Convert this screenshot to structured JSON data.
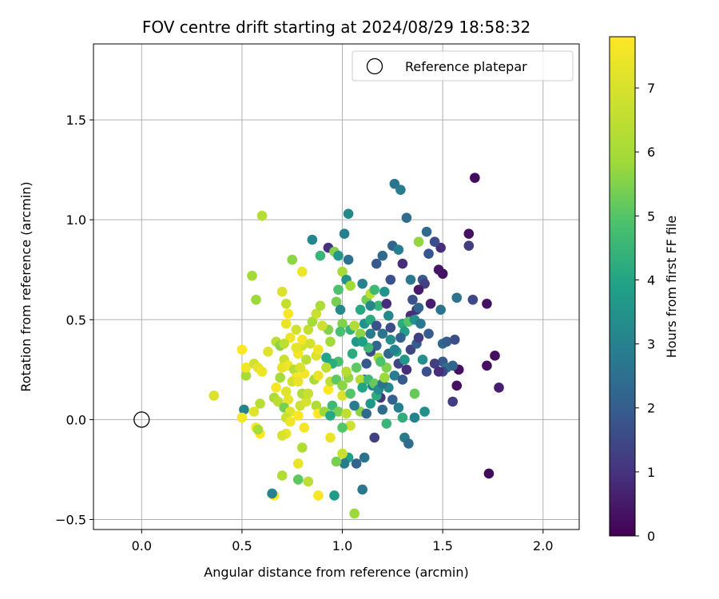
{
  "chart_data": {
    "type": "scatter",
    "title": "FOV centre drift starting at 2024/08/29 18:58:32",
    "xlabel": "Angular distance from reference (arcmin)",
    "ylabel": "Rotation from reference (arcmin)",
    "xlim": [
      -0.24,
      2.18
    ],
    "ylim": [
      -0.55,
      1.88
    ],
    "xticks": [
      0.0,
      0.5,
      1.0,
      1.5,
      2.0
    ],
    "xtick_labels": [
      "0.0",
      "0.5",
      "1.0",
      "1.5",
      "2.0"
    ],
    "yticks": [
      -0.5,
      0.0,
      0.5,
      1.0,
      1.5
    ],
    "ytick_labels": [
      "−0.5",
      "0.0",
      "0.5",
      "1.0",
      "1.5"
    ],
    "grid": true,
    "legend": {
      "entries": [
        "Reference platepar"
      ],
      "placement": "top-right"
    },
    "reference_point": {
      "x": 0.0,
      "y": 0.0,
      "label": "Reference platepar"
    },
    "colorbar": {
      "label": "Hours from first FF file",
      "colormap": "viridis",
      "range": [
        0,
        7.8
      ],
      "ticks": [
        0,
        1,
        2,
        3,
        4,
        5,
        6,
        7
      ],
      "tick_labels": [
        "0",
        "1",
        "2",
        "3",
        "4",
        "5",
        "6",
        "7"
      ]
    },
    "points": [
      {
        "x": 1.66,
        "y": 1.21,
        "t": 0.2
      },
      {
        "x": 1.63,
        "y": 0.93,
        "t": 0.3
      },
      {
        "x": 1.63,
        "y": 0.87,
        "t": 1.2
      },
      {
        "x": 1.65,
        "y": 0.6,
        "t": 1.5
      },
      {
        "x": 1.72,
        "y": 0.58,
        "t": 0.3
      },
      {
        "x": 1.76,
        "y": 0.32,
        "t": 0.3
      },
      {
        "x": 1.72,
        "y": 0.27,
        "t": 0.3
      },
      {
        "x": 1.78,
        "y": 0.16,
        "t": 0.6
      },
      {
        "x": 1.73,
        "y": -0.27,
        "t": 0.2
      },
      {
        "x": 1.57,
        "y": 0.17,
        "t": 0.3
      },
      {
        "x": 1.58,
        "y": 0.25,
        "t": 0.3
      },
      {
        "x": 1.55,
        "y": 0.09,
        "t": 1.2
      },
      {
        "x": 1.5,
        "y": 0.73,
        "t": 0.3
      },
      {
        "x": 1.48,
        "y": 0.75,
        "t": 0.4
      },
      {
        "x": 1.49,
        "y": 0.86,
        "t": 0.9
      },
      {
        "x": 1.46,
        "y": 0.89,
        "t": 1.6
      },
      {
        "x": 1.42,
        "y": 0.94,
        "t": 2.4
      },
      {
        "x": 1.43,
        "y": 0.83,
        "t": 1.8
      },
      {
        "x": 1.4,
        "y": 0.7,
        "t": 1.9
      },
      {
        "x": 1.41,
        "y": 0.68,
        "t": 1.3
      },
      {
        "x": 1.38,
        "y": 0.65,
        "t": 0.5
      },
      {
        "x": 1.35,
        "y": 0.6,
        "t": 1.7
      },
      {
        "x": 1.37,
        "y": 0.55,
        "t": 1.1
      },
      {
        "x": 1.34,
        "y": 0.52,
        "t": 0.9
      },
      {
        "x": 1.3,
        "y": 0.48,
        "t": 4.2
      },
      {
        "x": 1.33,
        "y": 0.49,
        "t": 5.0
      },
      {
        "x": 1.31,
        "y": 0.44,
        "t": 3.8
      },
      {
        "x": 1.32,
        "y": 1.01,
        "t": 2.4
      },
      {
        "x": 1.26,
        "y": 1.18,
        "t": 2.6
      },
      {
        "x": 1.29,
        "y": 1.15,
        "t": 2.8
      },
      {
        "x": 1.38,
        "y": 0.89,
        "t": 5.7
      },
      {
        "x": 1.34,
        "y": 0.7,
        "t": 2.7
      },
      {
        "x": 1.3,
        "y": 0.78,
        "t": 0.9
      },
      {
        "x": 1.25,
        "y": 0.87,
        "t": 2.2
      },
      {
        "x": 1.28,
        "y": 0.85,
        "t": 2.9
      },
      {
        "x": 1.24,
        "y": 0.7,
        "t": 1.7
      },
      {
        "x": 1.2,
        "y": 0.82,
        "t": 2.3
      },
      {
        "x": 1.17,
        "y": 0.78,
        "t": 1.9
      },
      {
        "x": 1.21,
        "y": 0.64,
        "t": 3.5
      },
      {
        "x": 1.18,
        "y": 0.57,
        "t": 4.5
      },
      {
        "x": 1.23,
        "y": 0.52,
        "t": 3.2
      },
      {
        "x": 1.24,
        "y": 0.46,
        "t": 1.6
      },
      {
        "x": 1.2,
        "y": 0.43,
        "t": 2.6
      },
      {
        "x": 1.17,
        "y": 0.37,
        "t": 2.2
      },
      {
        "x": 1.14,
        "y": 0.34,
        "t": 1.6
      },
      {
        "x": 1.12,
        "y": 0.28,
        "t": 1.9
      },
      {
        "x": 1.11,
        "y": 0.2,
        "t": 2.5
      },
      {
        "x": 1.15,
        "y": 0.17,
        "t": 3.0
      },
      {
        "x": 1.19,
        "y": 0.11,
        "t": 1.1
      },
      {
        "x": 1.23,
        "y": 0.16,
        "t": 3.2
      },
      {
        "x": 1.26,
        "y": 0.22,
        "t": 2.8
      },
      {
        "x": 1.28,
        "y": 0.28,
        "t": 1.4
      },
      {
        "x": 1.32,
        "y": 0.25,
        "t": 0.9
      },
      {
        "x": 1.27,
        "y": 0.34,
        "t": 3.8
      },
      {
        "x": 1.23,
        "y": 0.33,
        "t": 2.3
      },
      {
        "x": 1.28,
        "y": 0.06,
        "t": 2.9
      },
      {
        "x": 1.3,
        "y": 0.01,
        "t": 4.3
      },
      {
        "x": 1.36,
        "y": 0.01,
        "t": 3.0
      },
      {
        "x": 1.36,
        "y": 0.13,
        "t": 5.2
      },
      {
        "x": 1.41,
        "y": 0.04,
        "t": 3.4
      },
      {
        "x": 1.31,
        "y": -0.09,
        "t": 2.8
      },
      {
        "x": 1.33,
        "y": -0.12,
        "t": 2.4
      },
      {
        "x": 1.16,
        "y": -0.09,
        "t": 1.3
      },
      {
        "x": 1.1,
        "y": -0.35,
        "t": 2.7
      },
      {
        "x": 1.11,
        "y": -0.19,
        "t": 2.6
      },
      {
        "x": 1.07,
        "y": -0.22,
        "t": 2.2
      },
      {
        "x": 1.03,
        "y": -0.19,
        "t": 3.8
      },
      {
        "x": 1.01,
        "y": -0.22,
        "t": 2.8
      },
      {
        "x": 0.96,
        "y": -0.38,
        "t": 3.7
      },
      {
        "x": 0.97,
        "y": -0.21,
        "t": 5.4
      },
      {
        "x": 1.06,
        "y": -0.47,
        "t": 5.8
      },
      {
        "x": 1.0,
        "y": -0.17,
        "t": 6.7
      },
      {
        "x": 0.94,
        "y": -0.09,
        "t": 7.4
      },
      {
        "x": 0.88,
        "y": -0.38,
        "t": 7.7
      },
      {
        "x": 0.83,
        "y": -0.31,
        "t": 6.5
      },
      {
        "x": 0.8,
        "y": -0.14,
        "t": 6.2
      },
      {
        "x": 0.78,
        "y": -0.3,
        "t": 5.1
      },
      {
        "x": 0.78,
        "y": -0.22,
        "t": 7.4
      },
      {
        "x": 0.7,
        "y": -0.28,
        "t": 6.2
      },
      {
        "x": 0.66,
        "y": -0.38,
        "t": 7.8
      },
      {
        "x": 0.65,
        "y": -0.37,
        "t": 3.0
      },
      {
        "x": 0.72,
        "y": -0.07,
        "t": 7.4
      },
      {
        "x": 0.7,
        "y": -0.08,
        "t": 7.0
      },
      {
        "x": 0.59,
        "y": -0.07,
        "t": 7.8
      },
      {
        "x": 0.57,
        "y": -0.04,
        "t": 7.6
      },
      {
        "x": 0.58,
        "y": -0.05,
        "t": 6.0
      },
      {
        "x": 0.56,
        "y": 0.04,
        "t": 7.2
      },
      {
        "x": 0.51,
        "y": 0.05,
        "t": 3.0
      },
      {
        "x": 0.5,
        "y": 0.01,
        "t": 7.6
      },
      {
        "x": 0.36,
        "y": 0.12,
        "t": 7.1
      },
      {
        "x": 0.52,
        "y": 0.22,
        "t": 6.0
      },
      {
        "x": 0.52,
        "y": 0.26,
        "t": 7.6
      },
      {
        "x": 0.5,
        "y": 0.35,
        "t": 7.8
      },
      {
        "x": 0.56,
        "y": 0.28,
        "t": 6.9
      },
      {
        "x": 0.58,
        "y": 0.26,
        "t": 7.3
      },
      {
        "x": 0.6,
        "y": 0.24,
        "t": 7.5
      },
      {
        "x": 0.59,
        "y": 0.08,
        "t": 6.3
      },
      {
        "x": 0.55,
        "y": 0.72,
        "t": 5.9
      },
      {
        "x": 0.57,
        "y": 0.6,
        "t": 5.8
      },
      {
        "x": 0.6,
        "y": 1.02,
        "t": 6.3
      },
      {
        "x": 0.63,
        "y": 0.34,
        "t": 7.2
      },
      {
        "x": 0.67,
        "y": 0.39,
        "t": 6.4
      },
      {
        "x": 0.69,
        "y": 0.37,
        "t": 5.6
      },
      {
        "x": 0.71,
        "y": 0.3,
        "t": 6.7
      },
      {
        "x": 0.7,
        "y": 0.64,
        "t": 7.1
      },
      {
        "x": 0.72,
        "y": 0.58,
        "t": 6.6
      },
      {
        "x": 0.75,
        "y": 0.8,
        "t": 5.6
      },
      {
        "x": 0.8,
        "y": 0.74,
        "t": 7.5
      },
      {
        "x": 0.72,
        "y": 0.48,
        "t": 7.4
      },
      {
        "x": 0.73,
        "y": 0.53,
        "t": 7.7
      },
      {
        "x": 0.77,
        "y": 0.45,
        "t": 6.9
      },
      {
        "x": 0.74,
        "y": 0.41,
        "t": 7.5
      },
      {
        "x": 0.71,
        "y": 0.38,
        "t": 6.5
      },
      {
        "x": 0.7,
        "y": 0.26,
        "t": 7.3
      },
      {
        "x": 0.73,
        "y": 0.27,
        "t": 7.5
      },
      {
        "x": 0.76,
        "y": 0.25,
        "t": 6.3
      },
      {
        "x": 0.77,
        "y": 0.21,
        "t": 7.7
      },
      {
        "x": 0.75,
        "y": 0.19,
        "t": 6.9
      },
      {
        "x": 0.69,
        "y": 0.21,
        "t": 6.0
      },
      {
        "x": 0.66,
        "y": 0.11,
        "t": 6.1
      },
      {
        "x": 0.68,
        "y": 0.09,
        "t": 6.4
      },
      {
        "x": 0.67,
        "y": 0.16,
        "t": 7.7
      },
      {
        "x": 0.72,
        "y": 0.14,
        "t": 7.2
      },
      {
        "x": 0.73,
        "y": 0.1,
        "t": 7.3
      },
      {
        "x": 0.71,
        "y": 0.06,
        "t": 5.4
      },
      {
        "x": 0.74,
        "y": 0.04,
        "t": 7.2
      },
      {
        "x": 0.72,
        "y": 0.01,
        "t": 6.7
      },
      {
        "x": 0.74,
        "y": -0.01,
        "t": 7.5
      },
      {
        "x": 0.78,
        "y": 0.02,
        "t": 7.8
      },
      {
        "x": 0.81,
        "y": -0.04,
        "t": 7.6
      },
      {
        "x": 0.79,
        "y": 0.07,
        "t": 6.8
      },
      {
        "x": 0.82,
        "y": 0.09,
        "t": 7.0
      },
      {
        "x": 0.8,
        "y": 0.13,
        "t": 6.2
      },
      {
        "x": 0.83,
        "y": 0.13,
        "t": 6.7
      },
      {
        "x": 0.78,
        "y": 0.19,
        "t": 7.4
      },
      {
        "x": 0.81,
        "y": 0.23,
        "t": 7.6
      },
      {
        "x": 0.79,
        "y": 0.26,
        "t": 7.1
      },
      {
        "x": 0.82,
        "y": 0.3,
        "t": 6.4
      },
      {
        "x": 0.78,
        "y": 0.33,
        "t": 7.6
      },
      {
        "x": 0.8,
        "y": 0.37,
        "t": 6.9
      },
      {
        "x": 0.77,
        "y": 0.36,
        "t": 7.3
      },
      {
        "x": 0.8,
        "y": 0.4,
        "t": 7.6
      },
      {
        "x": 0.83,
        "y": 0.45,
        "t": 6.6
      },
      {
        "x": 0.85,
        "y": 0.49,
        "t": 6.0
      },
      {
        "x": 0.87,
        "y": 0.53,
        "t": 6.7
      },
      {
        "x": 0.84,
        "y": 0.38,
        "t": 6.9
      },
      {
        "x": 0.87,
        "y": 0.32,
        "t": 7.1
      },
      {
        "x": 0.88,
        "y": 0.35,
        "t": 7.5
      },
      {
        "x": 0.86,
        "y": 0.2,
        "t": 6.1
      },
      {
        "x": 0.88,
        "y": 0.22,
        "t": 7.4
      },
      {
        "x": 0.87,
        "y": 0.07,
        "t": 6.2
      },
      {
        "x": 0.88,
        "y": 0.03,
        "t": 7.8
      },
      {
        "x": 0.91,
        "y": 0.04,
        "t": 5.8
      },
      {
        "x": 0.93,
        "y": 0.15,
        "t": 7.8
      },
      {
        "x": 0.94,
        "y": 0.19,
        "t": 6.5
      },
      {
        "x": 0.95,
        "y": 0.07,
        "t": 4.6
      },
      {
        "x": 0.98,
        "y": 0.04,
        "t": 5.4
      },
      {
        "x": 1.0,
        "y": 0.12,
        "t": 7.1
      },
      {
        "x": 1.02,
        "y": 0.03,
        "t": 6.5
      },
      {
        "x": 1.04,
        "y": -0.03,
        "t": 6.8
      },
      {
        "x": 1.0,
        "y": -0.04,
        "t": 5.0
      },
      {
        "x": 0.94,
        "y": 0.02,
        "t": 4.1
      },
      {
        "x": 0.97,
        "y": 0.2,
        "t": 5.1
      },
      {
        "x": 1.0,
        "y": 0.17,
        "t": 5.6
      },
      {
        "x": 0.98,
        "y": 0.29,
        "t": 4.8
      },
      {
        "x": 0.95,
        "y": 0.28,
        "t": 4.2
      },
      {
        "x": 0.92,
        "y": 0.26,
        "t": 6.5
      },
      {
        "x": 0.92,
        "y": 0.31,
        "t": 4.0
      },
      {
        "x": 0.94,
        "y": 0.39,
        "t": 5.9
      },
      {
        "x": 0.93,
        "y": 0.45,
        "t": 5.5
      },
      {
        "x": 0.9,
        "y": 0.47,
        "t": 6.8
      },
      {
        "x": 0.89,
        "y": 0.57,
        "t": 6.1
      },
      {
        "x": 0.89,
        "y": 0.82,
        "t": 4.5
      },
      {
        "x": 0.85,
        "y": 0.9,
        "t": 3.1
      },
      {
        "x": 0.93,
        "y": 0.86,
        "t": 1.0
      },
      {
        "x": 0.96,
        "y": 0.84,
        "t": 5.5
      },
      {
        "x": 0.98,
        "y": 0.82,
        "t": 3.6
      },
      {
        "x": 1.01,
        "y": 0.93,
        "t": 2.9
      },
      {
        "x": 1.03,
        "y": 0.8,
        "t": 2.5
      },
      {
        "x": 1.0,
        "y": 0.74,
        "t": 6.0
      },
      {
        "x": 1.02,
        "y": 0.7,
        "t": 3.4
      },
      {
        "x": 0.98,
        "y": 0.65,
        "t": 4.9
      },
      {
        "x": 0.97,
        "y": 0.59,
        "t": 5.4
      },
      {
        "x": 0.99,
        "y": 0.55,
        "t": 3.2
      },
      {
        "x": 1.04,
        "y": 0.67,
        "t": 5.9
      },
      {
        "x": 1.03,
        "y": 1.03,
        "t": 3.2
      },
      {
        "x": 1.0,
        "y": 0.48,
        "t": 5.5
      },
      {
        "x": 0.99,
        "y": 0.44,
        "t": 4.8
      },
      {
        "x": 1.04,
        "y": 0.45,
        "t": 4.4
      },
      {
        "x": 1.06,
        "y": 0.47,
        "t": 6.2
      },
      {
        "x": 1.07,
        "y": 0.39,
        "t": 3.6
      },
      {
        "x": 1.09,
        "y": 0.43,
        "t": 5.6
      },
      {
        "x": 1.05,
        "y": 0.33,
        "t": 4.2
      },
      {
        "x": 1.07,
        "y": 0.26,
        "t": 5.1
      },
      {
        "x": 1.09,
        "y": 0.2,
        "t": 6.3
      },
      {
        "x": 1.1,
        "y": 0.16,
        "t": 4.0
      },
      {
        "x": 1.13,
        "y": 0.2,
        "t": 4.6
      },
      {
        "x": 1.14,
        "y": 0.08,
        "t": 3.6
      },
      {
        "x": 1.09,
        "y": 0.04,
        "t": 5.6
      },
      {
        "x": 1.04,
        "y": 0.13,
        "t": 5.0
      },
      {
        "x": 1.03,
        "y": 0.21,
        "t": 5.7
      },
      {
        "x": 1.02,
        "y": 0.24,
        "t": 6.3
      },
      {
        "x": 1.06,
        "y": 0.07,
        "t": 2.8
      },
      {
        "x": 1.12,
        "y": 0.03,
        "t": 2.3
      },
      {
        "x": 1.16,
        "y": 0.18,
        "t": 5.2
      },
      {
        "x": 1.17,
        "y": 0.12,
        "t": 4.2
      },
      {
        "x": 1.18,
        "y": 0.15,
        "t": 3.3
      },
      {
        "x": 1.2,
        "y": 0.18,
        "t": 2.6
      },
      {
        "x": 1.21,
        "y": 0.21,
        "t": 5.8
      },
      {
        "x": 1.22,
        "y": 0.26,
        "t": 5.5
      },
      {
        "x": 1.18,
        "y": 0.31,
        "t": 6.0
      },
      {
        "x": 1.19,
        "y": 0.29,
        "t": 4.9
      },
      {
        "x": 1.13,
        "y": 0.36,
        "t": 4.6
      },
      {
        "x": 1.1,
        "y": 0.39,
        "t": 3.9
      },
      {
        "x": 1.11,
        "y": 0.48,
        "t": 3.5
      },
      {
        "x": 1.14,
        "y": 0.5,
        "t": 4.2
      },
      {
        "x": 1.09,
        "y": 0.55,
        "t": 4.1
      },
      {
        "x": 1.12,
        "y": 0.6,
        "t": 5.3
      },
      {
        "x": 1.14,
        "y": 0.63,
        "t": 6.5
      },
      {
        "x": 1.1,
        "y": 0.68,
        "t": 3.0
      },
      {
        "x": 1.16,
        "y": 0.65,
        "t": 4.6
      },
      {
        "x": 1.14,
        "y": 0.57,
        "t": 3.2
      },
      {
        "x": 1.22,
        "y": 0.58,
        "t": 0.9
      },
      {
        "x": 1.17,
        "y": 0.47,
        "t": 1.7
      },
      {
        "x": 1.14,
        "y": 0.43,
        "t": 2.8
      },
      {
        "x": 1.24,
        "y": 0.4,
        "t": 3.3
      },
      {
        "x": 1.26,
        "y": 0.35,
        "t": 3.0
      },
      {
        "x": 1.29,
        "y": 0.41,
        "t": 2.1
      },
      {
        "x": 1.31,
        "y": 0.3,
        "t": 3.6
      },
      {
        "x": 1.34,
        "y": 0.35,
        "t": 1.4
      },
      {
        "x": 1.37,
        "y": 0.38,
        "t": 2.0
      },
      {
        "x": 1.38,
        "y": 0.41,
        "t": 1.2
      },
      {
        "x": 1.36,
        "y": 0.5,
        "t": 3.4
      },
      {
        "x": 1.39,
        "y": 0.48,
        "t": 2.7
      },
      {
        "x": 1.38,
        "y": 0.56,
        "t": 2.2
      },
      {
        "x": 1.44,
        "y": 0.58,
        "t": 0.6
      },
      {
        "x": 1.49,
        "y": 0.55,
        "t": 2.6
      },
      {
        "x": 1.5,
        "y": 0.38,
        "t": 2.3
      },
      {
        "x": 1.52,
        "y": 0.39,
        "t": 2.0
      },
      {
        "x": 1.56,
        "y": 0.4,
        "t": 1.6
      },
      {
        "x": 1.5,
        "y": 0.29,
        "t": 1.9
      },
      {
        "x": 1.52,
        "y": 0.26,
        "t": 2.5
      },
      {
        "x": 1.55,
        "y": 0.27,
        "t": 2.2
      },
      {
        "x": 1.5,
        "y": 0.24,
        "t": 1.5
      },
      {
        "x": 1.46,
        "y": 0.28,
        "t": 1.3
      },
      {
        "x": 1.48,
        "y": 0.24,
        "t": 0.9
      },
      {
        "x": 1.42,
        "y": 0.24,
        "t": 1.7
      },
      {
        "x": 1.4,
        "y": 0.3,
        "t": 3.4
      },
      {
        "x": 1.43,
        "y": 0.43,
        "t": 2.0
      },
      {
        "x": 1.57,
        "y": 0.61,
        "t": 2.6
      },
      {
        "x": 1.3,
        "y": 0.2,
        "t": 1.9
      },
      {
        "x": 1.25,
        "y": 0.1,
        "t": 2.1
      },
      {
        "x": 1.2,
        "y": 0.05,
        "t": 2.4
      },
      {
        "x": 1.22,
        "y": -0.02,
        "t": 4.5
      }
    ]
  }
}
